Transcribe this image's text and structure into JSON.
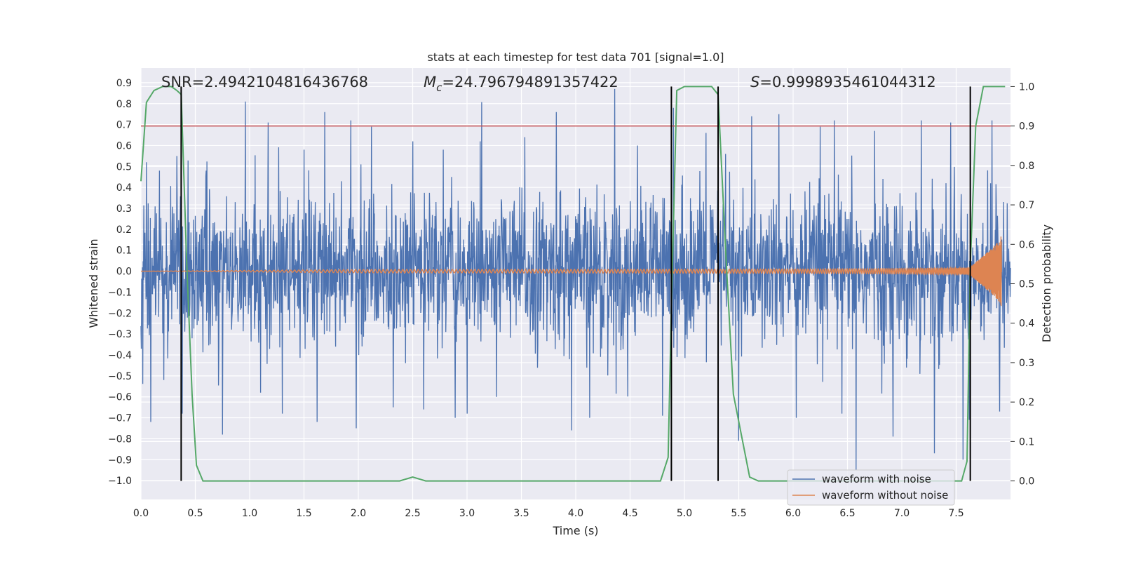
{
  "chart_data": {
    "type": "line",
    "title": "stats at each timestep for test data 701 [signal=1.0]",
    "xlabel": "Time (s)",
    "ylabel_left": "Whitened strain",
    "ylabel_right": "Detection probability",
    "xlim": [
      0.0,
      8.0
    ],
    "ylim_left": [
      -1.09,
      0.97
    ],
    "ylim_right": [
      -0.047,
      1.047
    ],
    "x_ticks": [
      "0.0",
      "0.5",
      "1.0",
      "1.5",
      "2.0",
      "2.5",
      "3.0",
      "3.5",
      "4.0",
      "4.5",
      "5.0",
      "5.5",
      "6.0",
      "6.5",
      "7.0",
      "7.5"
    ],
    "y_left_ticks": [
      "0.9",
      "0.8",
      "0.7",
      "0.6",
      "0.5",
      "0.4",
      "0.3",
      "0.2",
      "0.1",
      "0.0",
      "−0.1",
      "−0.2",
      "−0.3",
      "−0.4",
      "−0.5",
      "−0.6",
      "−0.7",
      "−0.8",
      "−0.9",
      "−1.0"
    ],
    "y_right_ticks": [
      "1.0",
      "0.9",
      "0.8",
      "0.7",
      "0.6",
      "0.5",
      "0.4",
      "0.3",
      "0.2",
      "0.1",
      "0.0"
    ],
    "grid": true,
    "annotations": {
      "snr": "SNR=2.4942104816436768",
      "mc_symbol": "M",
      "mc_sub": "c",
      "mc_value": "=24.796794891357422",
      "s_symbol": "S",
      "s_value": "=0.9998935461044312"
    },
    "threshold_right": 0.9,
    "vertical_markers_s": [
      0.37,
      4.88,
      5.31,
      7.63
    ],
    "series": [
      {
        "name": "waveform with noise",
        "color": "#4c72b0",
        "axis": "left",
        "envelope_typical": 0.32,
        "spikes": [
          [
            0.05,
            0.52
          ],
          [
            0.09,
            -0.72
          ],
          [
            0.17,
            0.48
          ],
          [
            0.21,
            -0.52
          ],
          [
            0.33,
            0.55
          ],
          [
            0.38,
            -0.68
          ],
          [
            0.6,
            0.48
          ],
          [
            0.75,
            -0.78
          ],
          [
            0.96,
            0.81
          ],
          [
            1.1,
            -0.58
          ],
          [
            1.17,
            0.71
          ],
          [
            1.3,
            -0.68
          ],
          [
            1.5,
            0.58
          ],
          [
            1.62,
            -0.72
          ],
          [
            1.69,
            0.76
          ],
          [
            1.93,
            0.72
          ],
          [
            1.98,
            -0.75
          ],
          [
            2.12,
            0.69
          ],
          [
            2.32,
            -0.65
          ],
          [
            2.5,
            0.62
          ],
          [
            2.6,
            -0.66
          ],
          [
            2.78,
            0.58
          ],
          [
            2.89,
            -0.7
          ],
          [
            3.0,
            -0.68
          ],
          [
            3.12,
            0.62
          ],
          [
            3.27,
            -0.6
          ],
          [
            3.53,
            0.64
          ],
          [
            3.82,
            0.76
          ],
          [
            3.96,
            -0.76
          ],
          [
            4.13,
            -0.7
          ],
          [
            4.36,
            0.87
          ],
          [
            4.57,
            0.6
          ],
          [
            4.8,
            -0.69
          ],
          [
            4.9,
            0.78
          ],
          [
            5.2,
            0.66
          ],
          [
            5.38,
            0.56
          ],
          [
            5.5,
            -0.81
          ],
          [
            5.62,
            0.74
          ],
          [
            5.87,
            0.75
          ],
          [
            6.03,
            -0.7
          ],
          [
            6.25,
            0.69
          ],
          [
            6.38,
            0.72
          ],
          [
            6.45,
            -0.68
          ],
          [
            6.58,
            -0.95
          ],
          [
            6.75,
            0.67
          ],
          [
            6.92,
            -0.79
          ],
          [
            7.18,
            0.72
          ],
          [
            7.3,
            -0.87
          ],
          [
            7.45,
            0.71
          ],
          [
            7.62,
            -0.71
          ],
          [
            7.83,
            0.72
          ],
          [
            7.9,
            -0.67
          ]
        ]
      },
      {
        "name": "waveform without noise",
        "color": "#dd8452",
        "axis": "left",
        "chirp_end_amplitude": 0.21,
        "coalescence_time": 7.92
      },
      {
        "name": "detection probability",
        "color": "#55a868",
        "axis": "right",
        "x": [
          0.0,
          0.05,
          0.12,
          0.2,
          0.28,
          0.33,
          0.37,
          0.42,
          0.47,
          0.51,
          0.57,
          0.7,
          2.3,
          2.38,
          2.5,
          2.62,
          2.75,
          4.6,
          4.78,
          4.85,
          4.88,
          4.93,
          5.0,
          5.25,
          5.31,
          5.38,
          5.45,
          5.6,
          5.68,
          7.55,
          7.6,
          7.63,
          7.68,
          7.75,
          7.8,
          7.95
        ],
        "y": [
          0.76,
          0.96,
          0.99,
          1.0,
          1.0,
          0.99,
          0.98,
          0.56,
          0.22,
          0.04,
          0.0,
          0.0,
          0.0,
          0.0,
          0.01,
          0.0,
          0.0,
          0.0,
          0.0,
          0.06,
          0.44,
          0.99,
          1.0,
          1.0,
          0.98,
          0.58,
          0.22,
          0.01,
          0.0,
          0.0,
          0.05,
          0.55,
          0.9,
          1.0,
          1.0,
          1.0
        ]
      }
    ],
    "threshold_color": "#c44e52",
    "legend": {
      "position": "bottom-right",
      "entries": [
        "waveform with noise",
        "waveform without noise"
      ]
    }
  }
}
